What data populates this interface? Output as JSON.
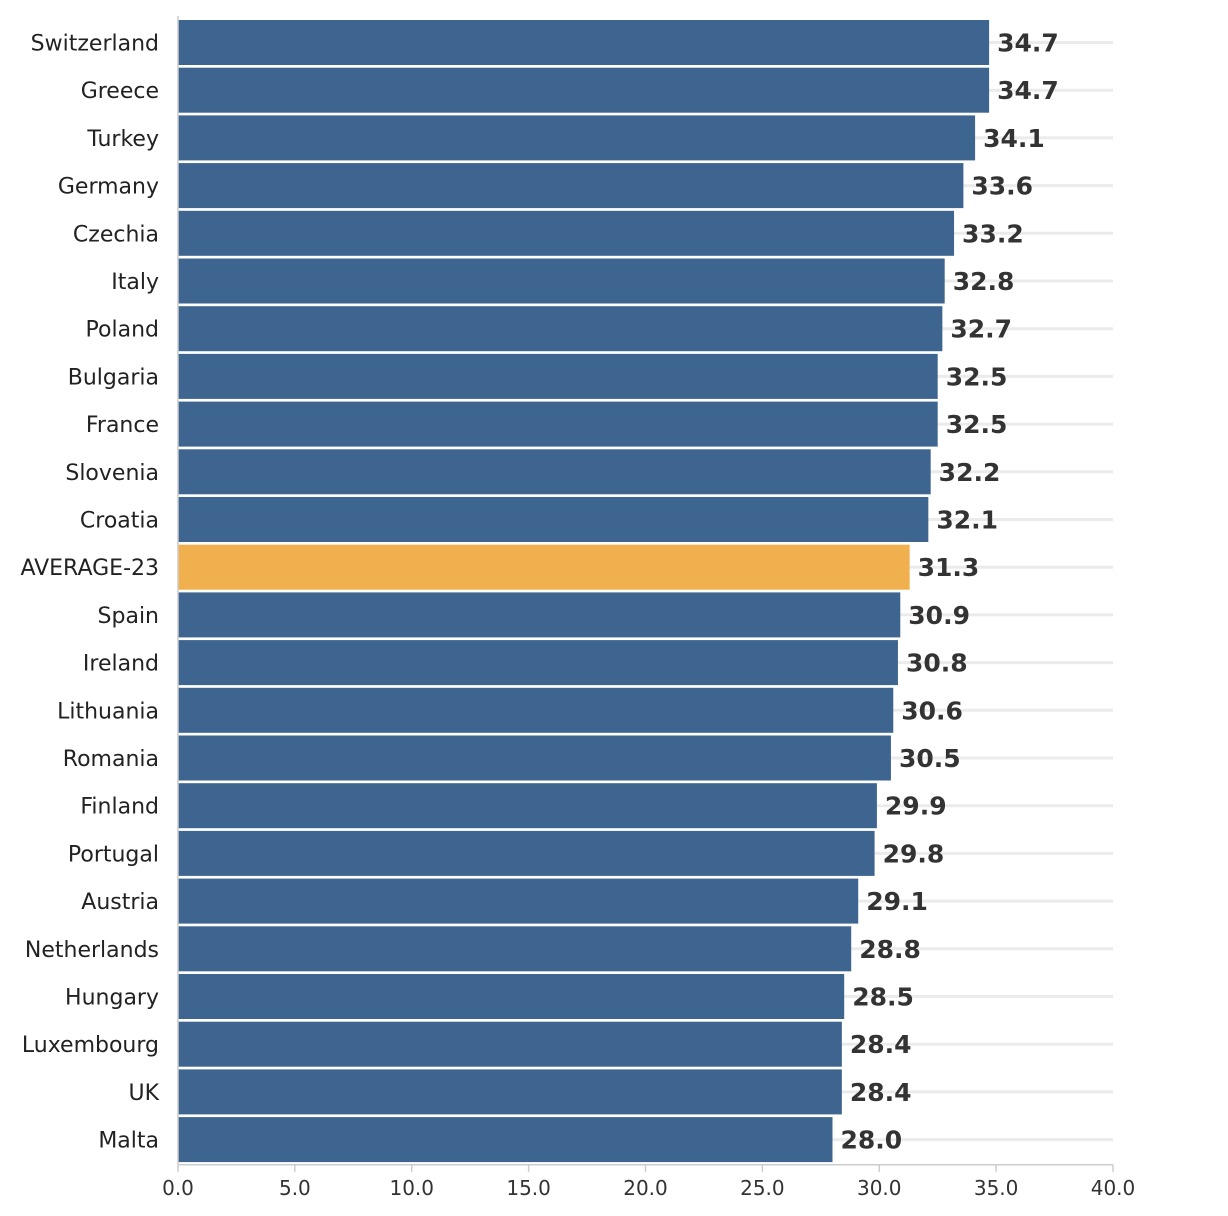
{
  "chart_data": {
    "type": "bar",
    "orientation": "horizontal",
    "title": "",
    "xlabel": "",
    "ylabel": "",
    "categories": [
      "Switzerland",
      "Greece",
      "Turkey",
      "Germany",
      "Czechia",
      "Italy",
      "Poland",
      "Bulgaria",
      "France",
      "Slovenia",
      "Croatia",
      "AVERAGE-23",
      "Spain",
      "Ireland",
      "Lithuania",
      "Romania",
      "Finland",
      "Portugal",
      "Austria",
      "Netherlands",
      "Hungary",
      "Luxembourg",
      "UK",
      "Malta"
    ],
    "values": [
      34.7,
      34.7,
      34.1,
      33.6,
      33.2,
      32.8,
      32.7,
      32.5,
      32.5,
      32.2,
      32.1,
      31.3,
      30.9,
      30.8,
      30.6,
      30.5,
      29.9,
      29.8,
      29.1,
      28.8,
      28.5,
      28.4,
      28.4,
      28.0
    ],
    "value_labels": [
      "34.7",
      "34.7",
      "34.1",
      "33.6",
      "33.2",
      "32.8",
      "32.7",
      "32.5",
      "32.5",
      "32.2",
      "32.1",
      "31.3",
      "30.9",
      "30.8",
      "30.6",
      "30.5",
      "29.9",
      "29.8",
      "29.1",
      "28.8",
      "28.5",
      "28.4",
      "28.4",
      "28.0"
    ],
    "highlight_category": "AVERAGE-23",
    "xlim": [
      0,
      40
    ],
    "xticks": [
      0,
      5,
      10,
      15,
      20,
      25,
      30,
      35,
      40
    ],
    "xtick_labels": [
      "0.0",
      "5.0",
      "10.0",
      "15.0",
      "20.0",
      "25.0",
      "30.0",
      "35.0",
      "40.0"
    ],
    "grid": "horizontal-lines-per-row",
    "legend": "none",
    "colors": {
      "bar": "#3d6590",
      "highlight": "#f0b04e",
      "grid": "#ebebeb",
      "axis": "#cccccc",
      "value_text": "#333333",
      "label_text": "#222222"
    }
  }
}
